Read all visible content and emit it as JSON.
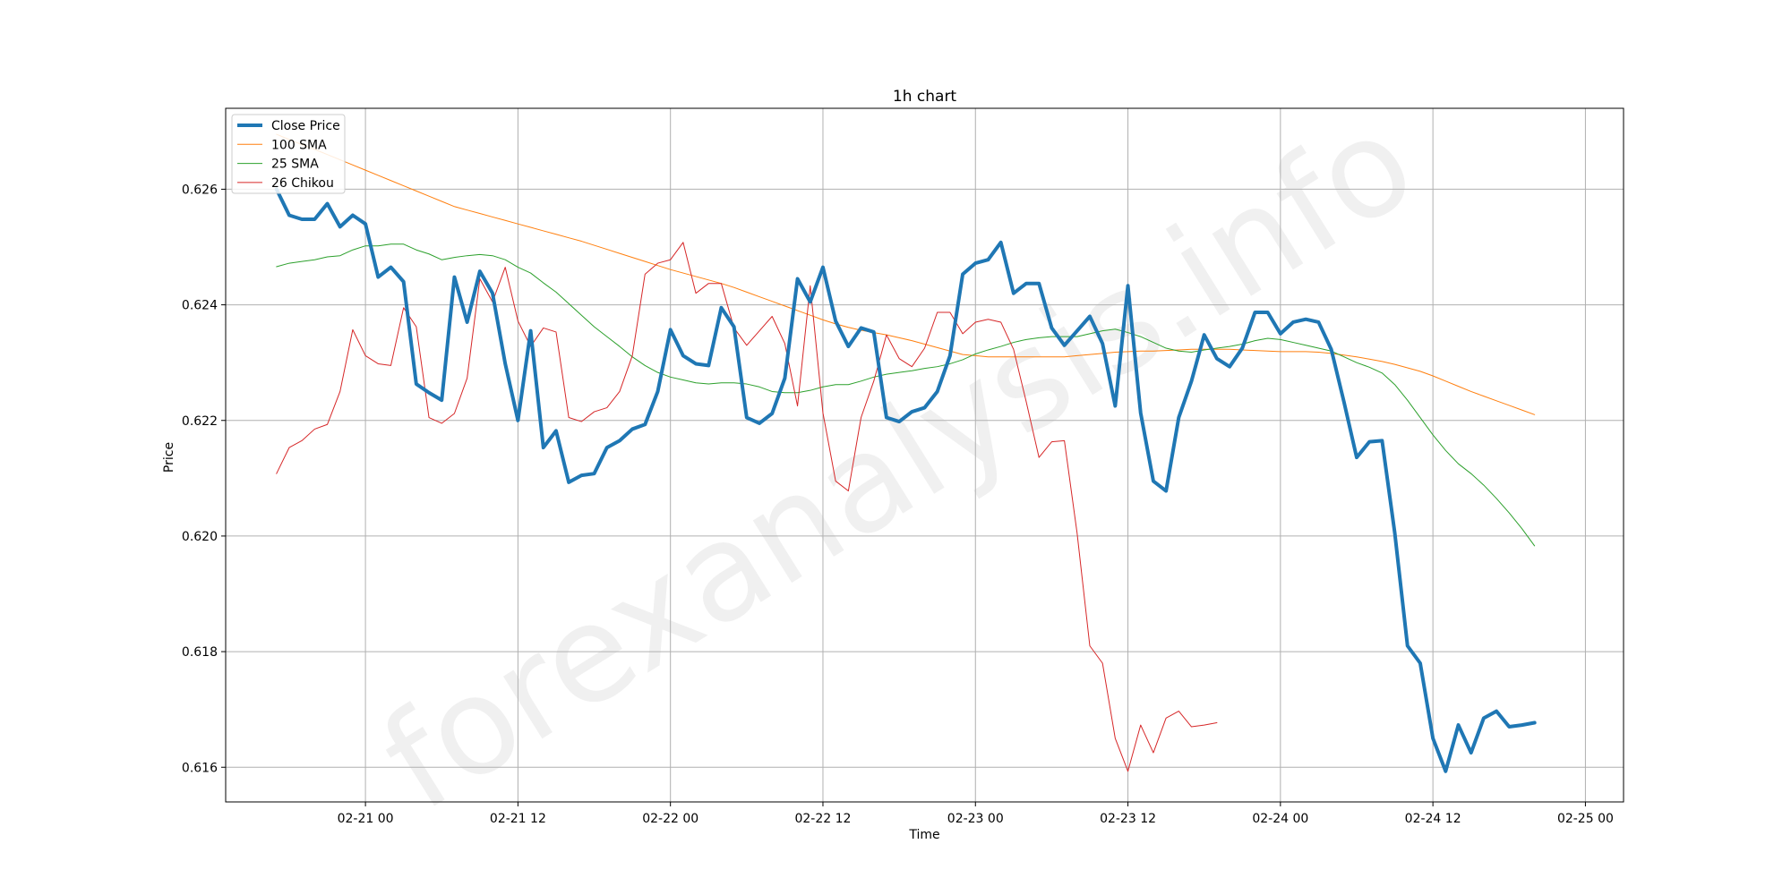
{
  "watermark": "forexanalysis.info",
  "chart_data": {
    "type": "line",
    "title": "1h chart",
    "xlabel": "Time",
    "ylabel": "Price",
    "x_start": "2024-02-20 17:00",
    "x_step_hours": 1,
    "xlim": [
      "2024-02-20 13:00",
      "2024-02-25 03:00"
    ],
    "ylim": [
      0.6154,
      0.6274
    ],
    "x_ticks": [
      {
        "value": "2024-02-21 00:00",
        "label": "02-21 00"
      },
      {
        "value": "2024-02-21 12:00",
        "label": "02-21 12"
      },
      {
        "value": "2024-02-22 00:00",
        "label": "02-22 00"
      },
      {
        "value": "2024-02-22 12:00",
        "label": "02-22 12"
      },
      {
        "value": "2024-02-23 00:00",
        "label": "02-23 00"
      },
      {
        "value": "2024-02-23 12:00",
        "label": "02-23 12"
      },
      {
        "value": "2024-02-24 00:00",
        "label": "02-24 00"
      },
      {
        "value": "2024-02-24 12:00",
        "label": "02-24 12"
      },
      {
        "value": "2024-02-25 00:00",
        "label": "02-25 00"
      }
    ],
    "y_ticks": [
      {
        "value": 0.616,
        "label": "0.616"
      },
      {
        "value": 0.618,
        "label": "0.618"
      },
      {
        "value": 0.62,
        "label": "0.620"
      },
      {
        "value": 0.622,
        "label": "0.622"
      },
      {
        "value": 0.624,
        "label": "0.624"
      },
      {
        "value": 0.626,
        "label": "0.626"
      }
    ],
    "grid": true,
    "legend_position": "upper-left",
    "series": [
      {
        "name": "Close Price",
        "color": "#1f77b4",
        "width": 4,
        "values": [
          0.626,
          0.62555,
          0.62548,
          0.62548,
          0.62575,
          0.62535,
          0.62555,
          0.6254,
          0.62448,
          0.62465,
          0.6244,
          0.62263,
          0.62248,
          0.62235,
          0.62448,
          0.6237,
          0.62458,
          0.6242,
          0.62298,
          0.622,
          0.62355,
          0.62153,
          0.62182,
          0.62093,
          0.62105,
          0.62108,
          0.62153,
          0.62165,
          0.62185,
          0.62193,
          0.6225,
          0.62357,
          0.62312,
          0.62298,
          0.62295,
          0.62395,
          0.62362,
          0.62205,
          0.62195,
          0.62212,
          0.62273,
          0.62445,
          0.62405,
          0.62465,
          0.62372,
          0.62328,
          0.6236,
          0.62353,
          0.62205,
          0.62198,
          0.62215,
          0.62222,
          0.6225,
          0.62312,
          0.62453,
          0.62472,
          0.62478,
          0.62508,
          0.6242,
          0.62437,
          0.62437,
          0.6236,
          0.6233,
          0.62355,
          0.6238,
          0.62333,
          0.62225,
          0.62433,
          0.62213,
          0.62095,
          0.62078,
          0.62205,
          0.62268,
          0.62348,
          0.62307,
          0.62293,
          0.62325,
          0.62387,
          0.62387,
          0.6235,
          0.6237,
          0.62375,
          0.6237,
          0.62323,
          0.62232,
          0.62136,
          0.62163,
          0.62165,
          0.62005,
          0.6181,
          0.6178,
          0.6165,
          0.61593,
          0.61673,
          0.61625,
          0.61685,
          0.61697,
          0.6167,
          0.61673,
          0.61677
        ]
      },
      {
        "name": "100 SMA",
        "color": "#ff7f0e",
        "width": 1,
        "values": [
          0.62695,
          0.62686,
          0.62677,
          0.62669,
          0.6266,
          0.62651,
          0.62642,
          0.62633,
          0.62624,
          0.62615,
          0.62606,
          0.62597,
          0.62588,
          0.62579,
          0.6257,
          0.62564,
          0.62558,
          0.62552,
          0.62546,
          0.6254,
          0.62534,
          0.62528,
          0.62522,
          0.62516,
          0.6251,
          0.62503,
          0.62496,
          0.62489,
          0.62482,
          0.62475,
          0.62468,
          0.62461,
          0.62455,
          0.62449,
          0.62443,
          0.62437,
          0.6243,
          0.62422,
          0.62414,
          0.62406,
          0.62398,
          0.6239,
          0.62382,
          0.62374,
          0.62367,
          0.62361,
          0.62356,
          0.62352,
          0.62348,
          0.62343,
          0.62338,
          0.62332,
          0.62326,
          0.6232,
          0.62314,
          0.62312,
          0.6231,
          0.6231,
          0.6231,
          0.6231,
          0.6231,
          0.6231,
          0.6231,
          0.62312,
          0.62314,
          0.62316,
          0.62318,
          0.62319,
          0.6232,
          0.6232,
          0.62321,
          0.62322,
          0.62323,
          0.62323,
          0.62323,
          0.62323,
          0.62322,
          0.62321,
          0.6232,
          0.62319,
          0.62319,
          0.62319,
          0.62318,
          0.62316,
          0.62313,
          0.6231,
          0.62306,
          0.62302,
          0.62297,
          0.62291,
          0.62285,
          0.62277,
          0.62268,
          0.62259,
          0.6225,
          0.62242,
          0.62234,
          0.62226,
          0.62218,
          0.6221
        ]
      },
      {
        "name": "25 SMA",
        "color": "#2ca02c",
        "width": 1,
        "values": [
          0.62466,
          0.62472,
          0.62475,
          0.62478,
          0.62483,
          0.62485,
          0.62495,
          0.62502,
          0.62502,
          0.62505,
          0.62505,
          0.62495,
          0.62488,
          0.62478,
          0.62482,
          0.62485,
          0.62487,
          0.62485,
          0.62478,
          0.62465,
          0.62455,
          0.62438,
          0.62422,
          0.62402,
          0.62382,
          0.62362,
          0.62345,
          0.62328,
          0.6231,
          0.62295,
          0.62283,
          0.62275,
          0.6227,
          0.62265,
          0.62263,
          0.62265,
          0.62265,
          0.62263,
          0.62258,
          0.6225,
          0.62248,
          0.62248,
          0.62252,
          0.62258,
          0.62262,
          0.62262,
          0.62268,
          0.62275,
          0.6228,
          0.62283,
          0.62286,
          0.6229,
          0.62293,
          0.62298,
          0.62305,
          0.62315,
          0.62322,
          0.62328,
          0.62335,
          0.6234,
          0.62343,
          0.62345,
          0.62345,
          0.62345,
          0.6235,
          0.62355,
          0.62358,
          0.62352,
          0.62345,
          0.62335,
          0.62325,
          0.6232,
          0.62318,
          0.62322,
          0.62325,
          0.62328,
          0.62332,
          0.62338,
          0.62342,
          0.6234,
          0.62335,
          0.6233,
          0.62325,
          0.6232,
          0.6231,
          0.623,
          0.62292,
          0.62282,
          0.62262,
          0.62235,
          0.62205,
          0.62175,
          0.62148,
          0.62125,
          0.62108,
          0.62088,
          0.62065,
          0.6204,
          0.62013,
          0.61983
        ]
      },
      {
        "name": "26 Chikou",
        "color": "#d62728",
        "width": 1,
        "values": [
          0.62108,
          0.62153,
          0.62165,
          0.62185,
          0.62193,
          0.6225,
          0.62357,
          0.62312,
          0.62298,
          0.62295,
          0.62395,
          0.62362,
          0.62205,
          0.62195,
          0.62212,
          0.62273,
          0.62445,
          0.62405,
          0.62465,
          0.62372,
          0.62328,
          0.6236,
          0.62353,
          0.62205,
          0.62198,
          0.62215,
          0.62222,
          0.6225,
          0.62312,
          0.62453,
          0.62472,
          0.62478,
          0.62508,
          0.6242,
          0.62437,
          0.62437,
          0.6236,
          0.6233,
          0.62355,
          0.6238,
          0.62333,
          0.62225,
          0.62433,
          0.62213,
          0.62095,
          0.62078,
          0.62205,
          0.62268,
          0.62348,
          0.62307,
          0.62293,
          0.62325,
          0.62387,
          0.62387,
          0.6235,
          0.6237,
          0.62375,
          0.6237,
          0.62323,
          0.62232,
          0.62136,
          0.62163,
          0.62165,
          0.62005,
          0.6181,
          0.6178,
          0.6165,
          0.61593,
          0.61673,
          0.61625,
          0.61685,
          0.61697,
          0.6167,
          0.61673,
          0.61677
        ]
      }
    ]
  }
}
